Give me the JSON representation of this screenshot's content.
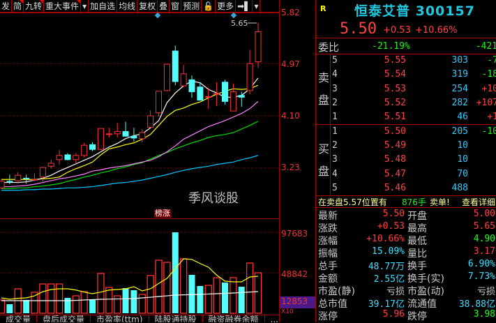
{
  "toolbar": {
    "items": [
      {
        "label": "发",
        "flag": false
      },
      {
        "label": "简",
        "flag": true
      },
      {
        "label": "九转",
        "flag": true
      },
      {
        "label": "重大事件",
        "flag": true
      },
      {
        "label": "▾",
        "flag": false
      },
      {
        "label": "加自选",
        "flag": false
      },
      {
        "label": "均线",
        "flag": false
      },
      {
        "label": "复权",
        "flag": false
      },
      {
        "label": "叠",
        "flag": false
      },
      {
        "label": "窗",
        "flag": false
      },
      {
        "label": "预测",
        "flag": false
      },
      {
        "label": "🔓",
        "flag": false
      },
      {
        "label": "更多",
        "flag": false
      },
      {
        "label": "➡▌",
        "flag": false
      },
      {
        "label": "▾",
        "flag": false
      }
    ]
  },
  "price_axis": {
    "labels": [
      "5.82",
      "4.97",
      "4.10",
      "3.23"
    ]
  },
  "volume_axis": {
    "labels": [
      "97683",
      "48842",
      "12853"
    ],
    "unit": "X10"
  },
  "high_marker": "5.65",
  "event_label": "榜涨",
  "colors": {
    "up": "#ff3232",
    "down": "#54fcfc",
    "ma5": "#ffffff",
    "ma10": "#ffff00",
    "ma20": "#ff80ff",
    "ma30": "#00e000",
    "ma60": "#00c8ff",
    "grid": "#a00000",
    "axis_text": "#e33",
    "volume_badge": "#4b1a8a"
  },
  "chart_data": {
    "type": "candlestick",
    "ylim": [
      2.85,
      5.82
    ],
    "ohlc": [
      [
        2.9,
        3.03,
        2.88,
        3.01
      ],
      [
        3.01,
        3.12,
        2.96,
        3.0
      ],
      [
        3.02,
        3.16,
        2.97,
        3.11
      ],
      [
        3.06,
        3.12,
        2.97,
        3.05
      ],
      [
        3.03,
        3.14,
        3.01,
        3.04
      ],
      [
        3.08,
        3.25,
        3.0,
        3.24
      ],
      [
        3.26,
        3.37,
        3.22,
        3.31
      ],
      [
        3.37,
        3.53,
        3.29,
        3.44
      ],
      [
        3.45,
        3.48,
        3.36,
        3.37
      ],
      [
        3.37,
        3.48,
        3.31,
        3.44
      ],
      [
        3.44,
        3.65,
        3.41,
        3.61
      ],
      [
        3.62,
        3.66,
        3.51,
        3.54
      ],
      [
        3.54,
        3.89,
        3.53,
        3.89
      ],
      [
        3.79,
        3.9,
        3.74,
        3.8
      ],
      [
        3.8,
        3.98,
        3.74,
        3.84
      ],
      [
        3.84,
        4.0,
        3.75,
        3.76
      ],
      [
        3.76,
        3.9,
        3.67,
        3.73
      ],
      [
        3.72,
        3.88,
        3.66,
        3.82
      ],
      [
        3.91,
        4.19,
        3.9,
        4.1
      ],
      [
        4.15,
        4.51,
        4.09,
        4.51
      ],
      [
        4.52,
        4.96,
        4.51,
        4.96
      ],
      [
        5.18,
        5.27,
        4.61,
        4.67
      ],
      [
        4.6,
        4.95,
        4.58,
        4.8
      ],
      [
        4.7,
        4.77,
        4.4,
        4.5
      ],
      [
        4.58,
        4.66,
        4.36,
        4.36
      ],
      [
        4.41,
        4.57,
        4.22,
        4.42
      ],
      [
        4.47,
        4.66,
        4.26,
        4.47
      ],
      [
        4.66,
        4.7,
        4.29,
        4.34
      ],
      [
        4.18,
        4.64,
        4.18,
        4.5
      ],
      [
        4.44,
        4.5,
        4.25,
        4.41
      ],
      [
        4.52,
        5.2,
        4.46,
        4.97
      ],
      [
        5.0,
        5.65,
        4.9,
        5.5
      ]
    ],
    "ma": {
      "ma5": [
        2.99,
        2.99,
        2.99,
        3.0,
        3.03,
        3.06,
        3.11,
        3.18,
        3.24,
        3.3,
        3.36,
        3.42,
        3.5,
        3.58,
        3.64,
        3.72,
        3.77,
        3.8,
        3.9,
        4.02,
        4.32,
        4.48,
        4.6,
        4.68,
        4.65,
        4.54,
        4.48,
        4.41,
        4.41,
        4.44,
        4.55,
        4.73
      ],
      "ma10": [
        3.04,
        3.04,
        3.04,
        3.04,
        3.04,
        3.05,
        3.06,
        3.08,
        3.16,
        3.22,
        3.27,
        3.33,
        3.45,
        3.55,
        3.58,
        3.62,
        3.65,
        3.71,
        3.79,
        3.94,
        4.09,
        4.19,
        4.23,
        4.29,
        4.33,
        4.4,
        4.46,
        4.51,
        4.55,
        4.54,
        4.55,
        4.61
      ],
      "ma20": [
        2.92,
        2.92,
        2.93,
        2.94,
        2.96,
        2.99,
        3.02,
        3.05,
        3.07,
        3.1,
        3.13,
        3.18,
        3.2,
        3.23,
        3.25,
        3.27,
        3.3,
        3.33,
        3.36,
        3.42,
        3.5,
        3.6,
        3.71,
        3.78,
        3.85,
        3.92,
        3.97,
        4.02,
        4.08,
        4.14,
        4.22,
        4.34
      ],
      "ma30": [
        2.89,
        2.89,
        2.9,
        2.9,
        2.92,
        2.93,
        2.95,
        2.97,
        3.01,
        3.04,
        3.08,
        3.11,
        3.15,
        3.18,
        3.22,
        3.25,
        3.29,
        3.32,
        3.38,
        3.44,
        3.49,
        3.55,
        3.6,
        3.65,
        3.69,
        3.74,
        3.77,
        3.79,
        3.82,
        3.88,
        3.94,
        4.01
      ],
      "ma60": [
        2.86,
        2.86,
        2.86,
        2.87,
        2.87,
        2.88,
        2.88,
        2.89,
        2.9,
        2.9,
        2.91,
        2.92,
        2.94,
        2.96,
        2.98,
        2.99,
        3.01,
        3.03,
        3.06,
        3.09,
        3.12,
        3.16,
        3.19,
        3.22,
        3.24,
        3.26,
        3.29,
        3.31,
        3.33,
        3.37,
        3.4,
        3.44
      ]
    },
    "volume": [
      16000,
      10950,
      29470,
      16000,
      25260,
      35360,
      35360,
      35360,
      18520,
      21050,
      26100,
      16000,
      47990,
      31150,
      21050,
      30310,
      27790,
      22730,
      45470,
      63990,
      61470,
      97683,
      65680,
      46310,
      32840,
      33680,
      42940,
      37050,
      42940,
      32000,
      60620,
      48770
    ],
    "volume_ma5": [
      18520,
      16840,
      18000,
      18520,
      21000,
      26000,
      28630,
      29470,
      29470,
      28000,
      25500,
      23580,
      25500,
      28000,
      28630,
      29470,
      32000,
      26940,
      29470,
      36000,
      42100,
      53890,
      65680,
      65000,
      60000,
      55570,
      46000,
      38730,
      37890,
      37890,
      43780,
      44630
    ],
    "volume_ma10": [
      15160,
      15160,
      15160,
      15160,
      15160,
      15160,
      15160,
      15160,
      15160,
      15500,
      16000,
      16400,
      16840,
      17000,
      17200,
      17400,
      17680,
      18500,
      19300,
      20210,
      21000,
      21890,
      22200,
      22500,
      22730,
      23200,
      23600,
      24000,
      24420,
      25000,
      25600,
      26100
    ],
    "volume_ylim": [
      0,
      97683
    ]
  },
  "quote": {
    "badge": "R",
    "name_code": "恒泰艾普 300157",
    "price": "5.50",
    "change": "+0.53",
    "change_pct": "+10.66%",
    "weibi_label": "委比",
    "weibi_pct": "-21.19%",
    "weibi_diff": "-421",
    "sell_label": [
      "卖",
      "盘"
    ],
    "buy_label": [
      "买",
      "盘"
    ],
    "sell": [
      {
        "lvl": "5",
        "price": "5.55",
        "vol": "303",
        "chg": "-7",
        "up": false
      },
      {
        "lvl": "4",
        "price": "5.54",
        "vol": "319",
        "chg": "-18",
        "up": false
      },
      {
        "lvl": "3",
        "price": "5.53",
        "vol": "254",
        "chg": "+10",
        "up": true
      },
      {
        "lvl": "2",
        "price": "5.52",
        "vol": "282",
        "chg": "+107",
        "up": true
      },
      {
        "lvl": "1",
        "price": "5.51",
        "vol": "46",
        "chg": "+1",
        "up": true
      }
    ],
    "buy": [
      {
        "lvl": "1",
        "price": "5.50",
        "vol": "205",
        "chg": "-10",
        "up": false
      },
      {
        "lvl": "2",
        "price": "5.49",
        "vol": "10",
        "chg": ""
      },
      {
        "lvl": "3",
        "price": "5.48",
        "vol": "10",
        "chg": ""
      },
      {
        "lvl": "4",
        "price": "5.47",
        "vol": "70",
        "chg": ""
      },
      {
        "lvl": "5",
        "price": "5.46",
        "vol": "488",
        "chg": ""
      }
    ],
    "notice": {
      "text": "在卖盘5.57位置有",
      "qty": "876手",
      "type": "卖单!",
      "link": "查看详细"
    },
    "stats": [
      {
        "l1": "最新",
        "v1": "5.50",
        "c1": "#ff4040",
        "l2": "开盘",
        "v2": "5.00",
        "c2": "#ff4040"
      },
      {
        "l1": "涨跌",
        "v1": "+0.53",
        "c1": "#ff4040",
        "l2": "最高",
        "v2": "5.65",
        "c2": "#ff4040"
      },
      {
        "l1": "涨幅",
        "v1": "+10.66%",
        "c1": "#ff4040",
        "l2": "最低",
        "v2": "4.90",
        "c2": "#20ff20"
      },
      {
        "l1": "振幅",
        "v1": "15.09%",
        "c1": "#3ce0ff",
        "l2": "量比",
        "v2": "3.17",
        "c2": "#ff4040"
      },
      {
        "l1": "总手",
        "v1": "48.77万",
        "c1": "#3ce0ff",
        "l2": "换手",
        "v2": "6.90%",
        "c2": "#3ce0ff"
      },
      {
        "l1": "金额",
        "v1": "2.55亿",
        "c1": "#3ce0ff",
        "l2": "换手(实)",
        "v2": "7.73%",
        "c2": "#3ce0ff"
      },
      {
        "l1": "市盈(静)",
        "v1": "亏损",
        "c1": "#cccccc",
        "l2": "市盈(动)",
        "v2": "亏损",
        "c2": "#cccccc"
      },
      {
        "l1": "总市值",
        "v1": "39.17亿",
        "c1": "#3ce0ff",
        "l2": "流通值",
        "v2": "38.88亿",
        "c2": "#3ce0ff"
      },
      {
        "l1": "涨停",
        "v1": "5.96",
        "c1": "#ff4040",
        "l2": "跌停",
        "v2": "3.98",
        "c2": "#20ff20"
      }
    ]
  },
  "watermark": "季风谈股",
  "tabs": [
    "成交量",
    "盘后成交量",
    "市盈率(ttm)",
    "陆股通持股",
    "融资融券余额",
    "..."
  ]
}
